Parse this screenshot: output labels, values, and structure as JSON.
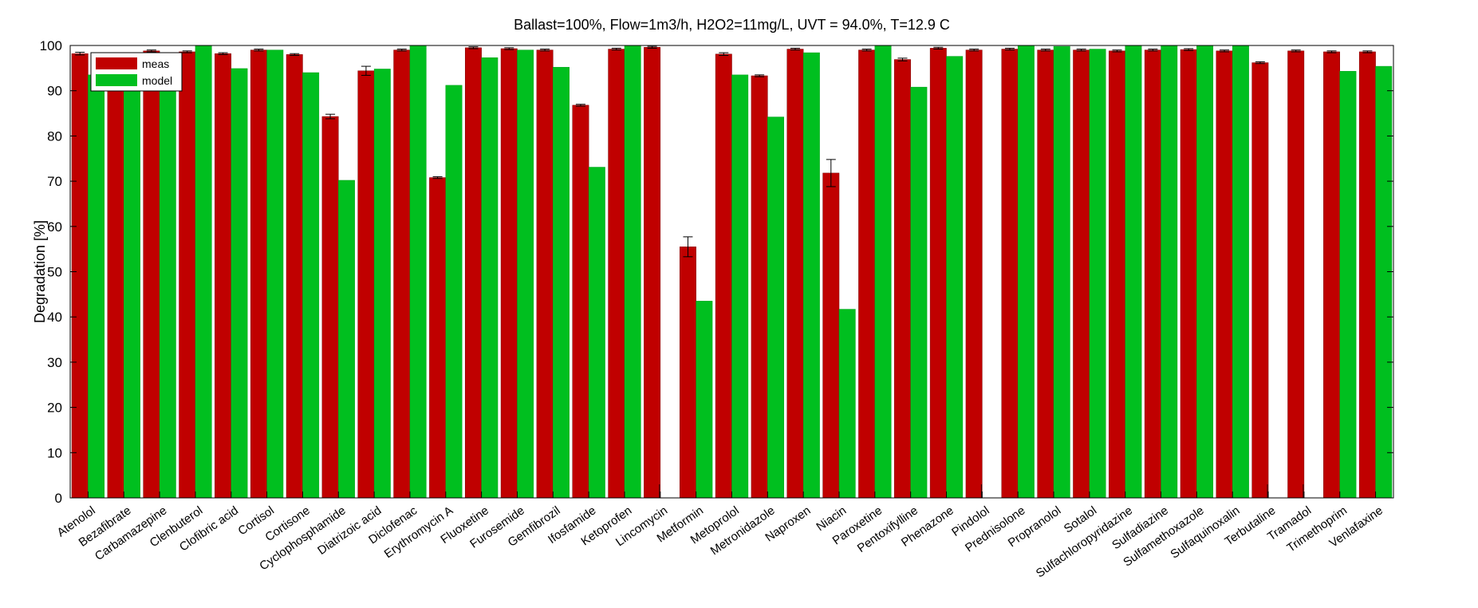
{
  "chart_data": {
    "type": "bar",
    "title": "Ballast=100%, Flow=1m3/h, H2O2=11mg/L, UVT = 94.0%, T=12.9 C",
    "xlabel": "",
    "ylabel": "Degradation [%]",
    "ylim": [
      0,
      100
    ],
    "yticks": [
      "0",
      "10",
      "20",
      "30",
      "40",
      "50",
      "60",
      "70",
      "80",
      "90",
      "100"
    ],
    "grid": false,
    "legend_position": "top-left",
    "categories": [
      "Atenolol",
      "Bezafibrate",
      "Carbamazepine",
      "Clenbuterol",
      "Clofibric acid",
      "Cortisol",
      "Cortisone",
      "Cyclophosphamide",
      "Diatrizoic acid",
      "Diclofenac",
      "Erythromycin A",
      "Fluoxetine",
      "Furosemide",
      "Gemfibrozil",
      "Ifosfamide",
      "Ketoprofen",
      "Lincomycin",
      "Metformin",
      "Metoprolol",
      "Metronidazole",
      "Naproxen",
      "Niacin",
      "Paroxetine",
      "Pentoxifylline",
      "Phenazone",
      "Pindolol",
      "Prednisolone",
      "Propranolol",
      "Sotalol",
      "Sulfachloropyridazine",
      "Sulfadiazine",
      "Sulfamethoxazole",
      "Sulfaquinoxalin",
      "Terbutaline",
      "Tramadol",
      "Trimethoprim",
      "Venlafaxine"
    ],
    "series": [
      {
        "name": "meas",
        "color": "#c00000",
        "values": [
          98.2,
          97.5,
          98.8,
          98.6,
          98.2,
          99.0,
          98.0,
          84.3,
          94.4,
          99.0,
          70.8,
          99.5,
          99.3,
          99.0,
          86.8,
          99.2,
          99.6,
          55.5,
          98.1,
          93.3,
          99.2,
          71.8,
          99.0,
          96.9,
          99.4,
          99.0,
          99.2,
          99.0,
          99.0,
          98.8,
          99.0,
          99.1,
          98.8,
          96.2,
          98.8,
          98.6,
          98.6
        ],
        "errors": [
          0.3,
          0.3,
          0.2,
          0.2,
          0.2,
          0.2,
          0.2,
          0.5,
          1.0,
          0.2,
          0.2,
          0.2,
          0.2,
          0.2,
          0.2,
          0.2,
          0.2,
          2.2,
          0.3,
          0.2,
          0.2,
          3.0,
          0.2,
          0.3,
          0.2,
          0.2,
          0.2,
          0.2,
          0.2,
          0.2,
          0.2,
          0.2,
          0.2,
          0.2,
          0.2,
          0.2,
          0.2
        ]
      },
      {
        "name": "model",
        "color": "#00bf1f",
        "values": [
          93.5,
          91.0,
          96.0,
          100.0,
          94.9,
          99.0,
          94.0,
          70.2,
          94.8,
          100.0,
          91.2,
          97.3,
          99.0,
          95.2,
          73.1,
          100.0,
          0,
          43.5,
          93.5,
          84.2,
          98.4,
          41.7,
          100.0,
          90.8,
          97.6,
          0,
          100.0,
          99.8,
          99.2,
          100.0,
          100.0,
          100.0,
          100.0,
          0,
          0,
          94.3,
          95.4
        ]
      }
    ],
    "zero_bar_markers": [
      16,
      25,
      33,
      34
    ]
  }
}
